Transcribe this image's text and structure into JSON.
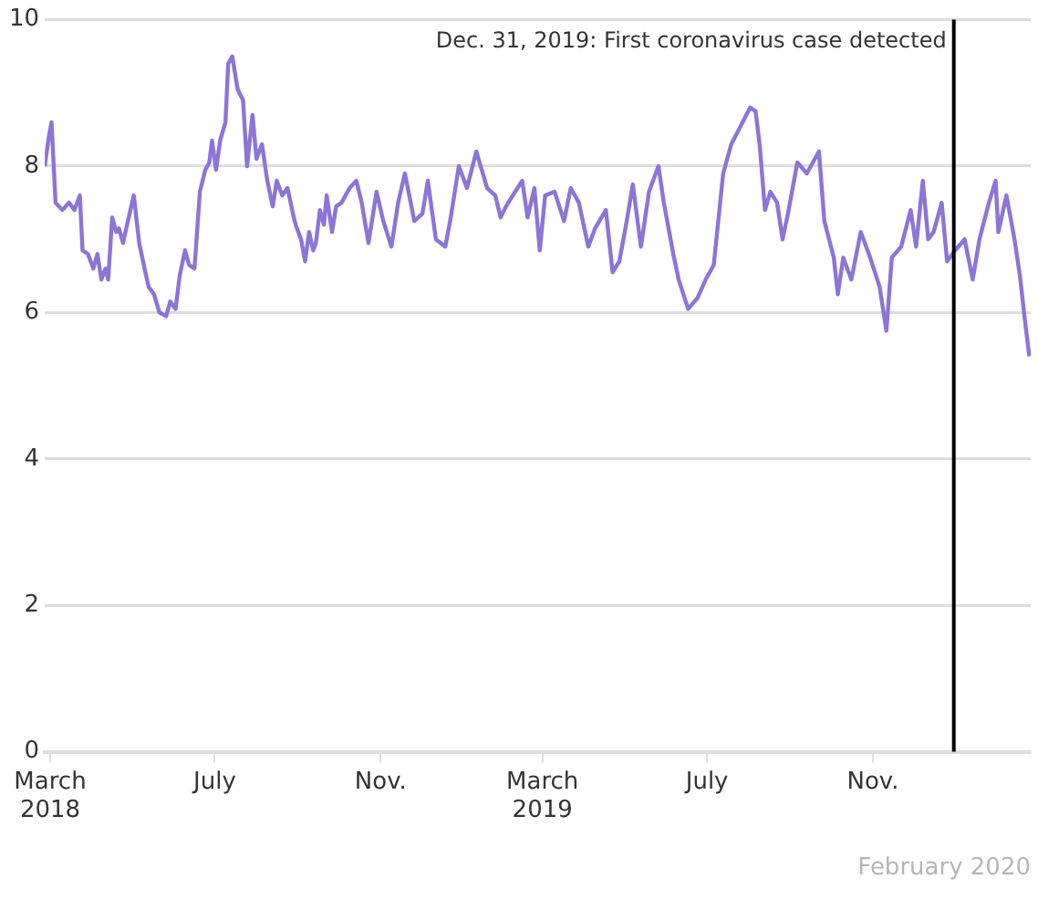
{
  "chart_data": {
    "type": "line",
    "x": [
      "2018-02-25",
      "2018-02-28",
      "2018-03-02",
      "2018-03-05",
      "2018-03-10",
      "2018-03-15",
      "2018-03-19",
      "2018-03-23",
      "2018-03-25",
      "2018-03-29",
      "2018-04-02",
      "2018-04-05",
      "2018-04-08",
      "2018-04-11",
      "2018-04-13",
      "2018-04-16",
      "2018-04-19",
      "2018-04-21",
      "2018-04-24",
      "2018-04-27",
      "2018-05-02",
      "2018-05-06",
      "2018-05-10",
      "2018-05-13",
      "2018-05-17",
      "2018-05-21",
      "2018-05-26",
      "2018-05-29",
      "2018-06-02",
      "2018-06-05",
      "2018-06-09",
      "2018-06-12",
      "2018-06-16",
      "2018-06-20",
      "2018-06-24",
      "2018-06-27",
      "2018-06-29",
      "2018-07-02",
      "2018-07-05",
      "2018-07-09",
      "2018-07-11",
      "2018-07-14",
      "2018-07-18",
      "2018-07-22",
      "2018-07-25",
      "2018-07-29",
      "2018-08-01",
      "2018-08-05",
      "2018-08-09",
      "2018-08-13",
      "2018-08-16",
      "2018-08-20",
      "2018-08-24",
      "2018-08-28",
      "2018-08-30",
      "2018-09-03",
      "2018-09-06",
      "2018-09-09",
      "2018-09-12",
      "2018-09-14",
      "2018-09-17",
      "2018-09-20",
      "2018-09-22",
      "2018-09-26",
      "2018-09-29",
      "2018-10-03",
      "2018-10-09",
      "2018-10-14",
      "2018-10-18",
      "2018-10-23",
      "2018-10-29",
      "2018-11-03",
      "2018-11-09",
      "2018-11-14",
      "2018-11-19",
      "2018-11-26",
      "2018-12-02",
      "2018-12-06",
      "2018-12-12",
      "2018-12-19",
      "2018-12-23",
      "2018-12-29",
      "2019-01-04",
      "2019-01-11",
      "2019-01-15",
      "2019-01-19",
      "2019-01-25",
      "2019-01-29",
      "2019-02-02",
      "2019-02-07",
      "2019-02-14",
      "2019-02-18",
      "2019-02-23",
      "2019-02-27",
      "2019-03-03",
      "2019-03-10",
      "2019-03-17",
      "2019-03-22",
      "2019-03-28",
      "2019-04-04",
      "2019-04-09",
      "2019-04-17",
      "2019-04-22",
      "2019-04-27",
      "2019-05-02",
      "2019-05-07",
      "2019-05-13",
      "2019-05-19",
      "2019-05-26",
      "2019-05-30",
      "2019-06-06",
      "2019-06-10",
      "2019-06-17",
      "2019-06-24",
      "2019-06-30",
      "2019-07-06",
      "2019-07-13",
      "2019-07-19",
      "2019-07-26",
      "2019-08-02",
      "2019-08-06",
      "2019-08-09",
      "2019-08-13",
      "2019-08-17",
      "2019-08-22",
      "2019-08-26",
      "2019-08-30",
      "2019-09-06",
      "2019-09-13",
      "2019-09-22",
      "2019-09-26",
      "2019-10-03",
      "2019-10-06",
      "2019-10-10",
      "2019-10-16",
      "2019-10-23",
      "2019-10-30",
      "2019-11-06",
      "2019-11-11",
      "2019-11-15",
      "2019-11-22",
      "2019-11-29",
      "2019-12-03",
      "2019-12-08",
      "2019-12-12",
      "2019-12-16",
      "2019-12-22",
      "2019-12-26",
      "2020-01-01",
      "2020-01-08",
      "2020-01-14",
      "2020-01-19",
      "2020-01-26",
      "2020-01-31",
      "2020-02-02",
      "2020-02-08",
      "2020-02-14",
      "2020-02-18",
      "2020-02-22",
      "2020-02-25"
    ],
    "series": [
      {
        "color": "#8c74d8",
        "values": [
          8.0,
          8.4,
          8.6,
          7.5,
          7.4,
          7.5,
          7.4,
          7.6,
          6.85,
          6.8,
          6.6,
          6.8,
          6.45,
          6.6,
          6.45,
          7.3,
          7.1,
          7.15,
          6.95,
          7.2,
          7.6,
          6.95,
          6.6,
          6.35,
          6.25,
          6.0,
          5.95,
          6.15,
          6.05,
          6.5,
          6.85,
          6.65,
          6.6,
          7.65,
          7.95,
          8.05,
          8.35,
          7.95,
          8.35,
          8.6,
          9.4,
          9.5,
          9.05,
          8.9,
          8.0,
          8.7,
          8.1,
          8.3,
          7.8,
          7.45,
          7.8,
          7.6,
          7.7,
          7.35,
          7.2,
          7.0,
          6.7,
          7.1,
          6.85,
          6.95,
          7.4,
          7.2,
          7.6,
          7.1,
          7.45,
          7.5,
          7.7,
          7.8,
          7.5,
          6.95,
          7.65,
          7.25,
          6.9,
          7.5,
          7.9,
          7.25,
          7.35,
          7.8,
          7.0,
          6.9,
          7.3,
          8.0,
          7.7,
          8.2,
          7.95,
          7.7,
          7.6,
          7.3,
          7.45,
          7.6,
          7.8,
          7.3,
          7.7,
          6.85,
          7.6,
          7.65,
          7.25,
          7.7,
          7.5,
          6.9,
          7.15,
          7.4,
          6.55,
          6.7,
          7.2,
          7.75,
          6.9,
          7.65,
          8.0,
          7.5,
          6.8,
          6.45,
          6.05,
          6.2,
          6.45,
          6.65,
          7.9,
          8.3,
          8.55,
          8.8,
          8.75,
          8.3,
          7.4,
          7.65,
          7.5,
          7.0,
          7.35,
          8.05,
          7.9,
          8.2,
          7.25,
          6.75,
          6.25,
          6.75,
          6.45,
          7.1,
          6.75,
          6.35,
          5.75,
          6.75,
          6.9,
          7.4,
          6.9,
          7.8,
          7.0,
          7.1,
          7.5,
          6.7,
          6.85,
          7.0,
          6.45,
          7.0,
          7.5,
          7.8,
          7.1,
          7.6,
          7.0,
          6.5,
          5.85,
          5.4
        ]
      }
    ],
    "xlim": [
      "2018-02-25",
      "2020-02-26"
    ],
    "xticks": [
      {
        "value": "2018-03-01",
        "label": "March 2018"
      },
      {
        "value": "2018-07-01",
        "label": "July"
      },
      {
        "value": "2018-11-01",
        "label": "Nov."
      },
      {
        "value": "2019-03-01",
        "label": "March 2019"
      },
      {
        "value": "2019-07-01",
        "label": "July"
      },
      {
        "value": "2019-11-01",
        "label": "Nov."
      }
    ],
    "ylim": [
      0,
      10
    ],
    "yticks": [
      0,
      2,
      4,
      6,
      8,
      10
    ],
    "grid": "y",
    "ref_lines": [
      {
        "axis": "x",
        "value": "2019-12-31",
        "label": "Dec. 31, 2019: First coronavirus case detected",
        "color": "#000000"
      }
    ],
    "annotations": [
      "February 2020"
    ]
  }
}
